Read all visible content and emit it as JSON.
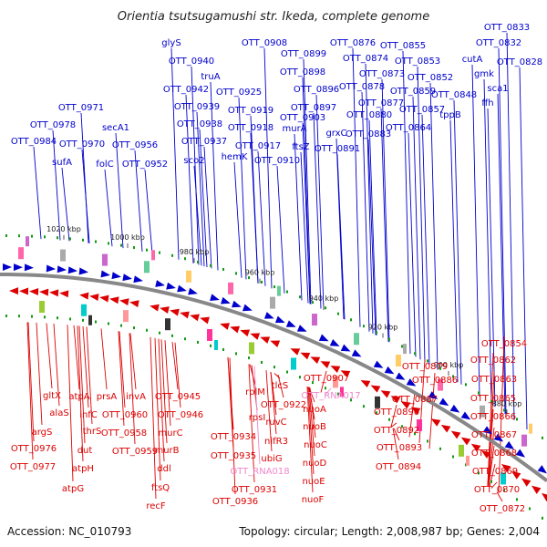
{
  "title": "Orientia tsutsugamushi str. Ikeda, complete genome",
  "footer": {
    "accession": "Accession: NC_010793",
    "summary": "Topology: circular; Length: 2,008,987 bp; Genes: 2,004"
  },
  "colors": {
    "forward": "#0000cc",
    "reverse": "#dd0000",
    "rna": "#ee88cc",
    "backbone": "#888888",
    "dot": "#119911"
  },
  "ticks": [
    "1020 kbp",
    "1000 kbp",
    "980 kbp",
    "960 kbp",
    "940 kbp",
    "920 kbp",
    "900 kbp",
    "880 kbp"
  ],
  "top_labels": [
    "OTT_0984",
    "OTT_0978",
    "OTT_0971",
    "sufA",
    "OTT_0970",
    "secA1",
    "folC",
    "OTT_0956",
    "OTT_0952",
    "glyS",
    "OTT_0940",
    "OTT_0942",
    "truA",
    "OTT_0939",
    "OTT_0925",
    "OTT_0938",
    "OTT_0937",
    "sco2",
    "OTT_0919",
    "OTT_0918",
    "OTT_0917",
    "hemK",
    "OTT_0908",
    "OTT_0910",
    "OTT_0899",
    "OTT_0898",
    "OTT_0896",
    "OTT_0897",
    "murA",
    "OTT_0903",
    "ftsZ",
    "grxC",
    "OTT_0891",
    "OTT_0876",
    "OTT_0874",
    "OTT_0878",
    "OTT_0873",
    "OTT_0877",
    "OTT_0880",
    "OTT_0883",
    "OTT_0855",
    "OTT_0853",
    "OTT_0852",
    "OTT_0859",
    "OTT_0857",
    "OTT_0864",
    "OTT_0848",
    "tppB",
    "OTT_0833",
    "OTT_0832",
    "cutA",
    "gmk",
    "OTT_0828",
    "sca1",
    "ffh"
  ],
  "bottom_labels": [
    "gltX",
    "alaS",
    "argS",
    "OTT_0976",
    "OTT_0977",
    "atpA",
    "thrS",
    "infC",
    "dut",
    "atpH",
    "atpG",
    "prsA",
    "invA",
    "OTT_0960",
    "OTT_0958",
    "OTT_0959",
    "OTT_0945",
    "OTT_0946",
    "murC",
    "murB",
    "ddl",
    "ftsQ",
    "recF",
    "rplM",
    "rpsI",
    "OTT_0934",
    "OTT_0935",
    "OTT_RNA018",
    "OTT_0931",
    "OTT_0936",
    "tlcS",
    "OTT_0922",
    "ruvC",
    "nifR3",
    "ubiG",
    "OTT_0907",
    "OTT_RNA017",
    "nuoA",
    "nuoB",
    "nuoC",
    "nuoD",
    "nuoE",
    "nuoF",
    "OTT_0879",
    "OTT_0886",
    "OTT_0887",
    "OTT_0890",
    "OTT_0892",
    "OTT_0893",
    "OTT_0894",
    "OTT_0854",
    "OTT_0862",
    "OTT_0863",
    "OTT_0865",
    "OTT_0866",
    "OTT_0867",
    "OTT_0868",
    "OTT_0869",
    "OTT_0870",
    "OTT_0872"
  ]
}
